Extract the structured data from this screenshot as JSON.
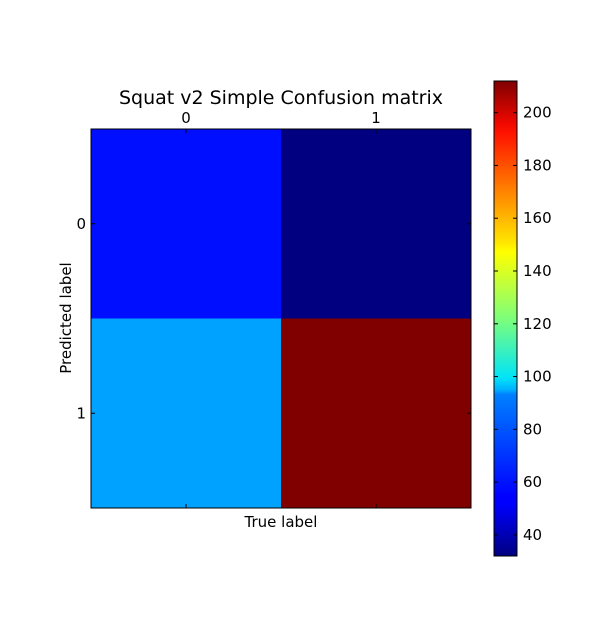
{
  "chart_data": {
    "type": "heatmap",
    "title": "Squat v2 Simple Confusion matrix",
    "xlabel": "True label",
    "ylabel": "Predicted label",
    "x_categories": [
      "0",
      "1"
    ],
    "y_categories": [
      "0",
      "1"
    ],
    "values": [
      [
        57,
        32
      ],
      [
        83,
        212
      ]
    ],
    "colormap": "jet",
    "colorbar": {
      "range": [
        32,
        212
      ],
      "ticks": [
        40,
        60,
        80,
        100,
        120,
        140,
        160,
        180,
        200
      ],
      "tick_labels": [
        "40",
        "60",
        "80",
        "100",
        "120",
        "140",
        "160",
        "180",
        "200"
      ]
    },
    "grid": false,
    "x_ticks_position": "top"
  }
}
